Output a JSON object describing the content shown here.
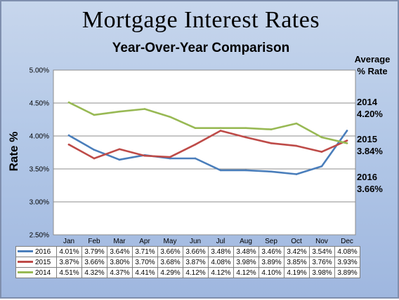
{
  "chart_data": {
    "type": "line",
    "title": "Mortgage Interest Rates",
    "subtitle": "Year-Over-Year Comparison",
    "ylabel": "Rate %",
    "ylim": [
      2.5,
      5.0
    ],
    "ytick_labels": [
      "5.00%",
      "4.50%",
      "4.00%",
      "3.50%",
      "3.00%",
      "2.50%"
    ],
    "ytick_values": [
      5.0,
      4.5,
      4.0,
      3.5,
      3.0,
      2.5
    ],
    "categories": [
      "Jan",
      "Feb",
      "Mar",
      "Apr",
      "May",
      "Jun",
      "Jul",
      "Aug",
      "Sep",
      "Oct",
      "Nov",
      "Dec"
    ],
    "grid": true,
    "legend": "data-table",
    "series": [
      {
        "name": "2016",
        "color": "#4a7ebb",
        "values": [
          4.01,
          3.79,
          3.64,
          3.71,
          3.66,
          3.66,
          3.48,
          3.48,
          3.46,
          3.42,
          3.54,
          4.08
        ],
        "labels": [
          "4.01%",
          "3.79%",
          "3.64%",
          "3.71%",
          "3.66%",
          "3.66%",
          "3.48%",
          "3.48%",
          "3.46%",
          "3.42%",
          "3.54%",
          "4.08%"
        ]
      },
      {
        "name": "2015",
        "color": "#be4b48",
        "values": [
          3.87,
          3.66,
          3.8,
          3.7,
          3.68,
          3.87,
          4.08,
          3.98,
          3.89,
          3.85,
          3.76,
          3.93
        ],
        "labels": [
          "3.87%",
          "3.66%",
          "3.80%",
          "3.70%",
          "3.68%",
          "3.87%",
          "4.08%",
          "3.98%",
          "3.89%",
          "3.85%",
          "3.76%",
          "3.93%"
        ]
      },
      {
        "name": "2014",
        "color": "#98b954",
        "values": [
          4.51,
          4.32,
          4.37,
          4.41,
          4.29,
          4.12,
          4.12,
          4.12,
          4.1,
          4.19,
          3.98,
          3.89
        ],
        "labels": [
          "4.51%",
          "4.32%",
          "4.37%",
          "4.41%",
          "4.29%",
          "4.12%",
          "4.12%",
          "4.12%",
          "4.10%",
          "4.19%",
          "3.98%",
          "3.89%"
        ]
      }
    ],
    "annotations": {
      "heading_line1": "Average",
      "heading_line2": "% Rate",
      "averages": [
        {
          "year": "2014",
          "value": "4.20%"
        },
        {
          "year": "2015",
          "value": "3.84%"
        },
        {
          "year": "2016",
          "value": "3.66%"
        }
      ]
    }
  }
}
